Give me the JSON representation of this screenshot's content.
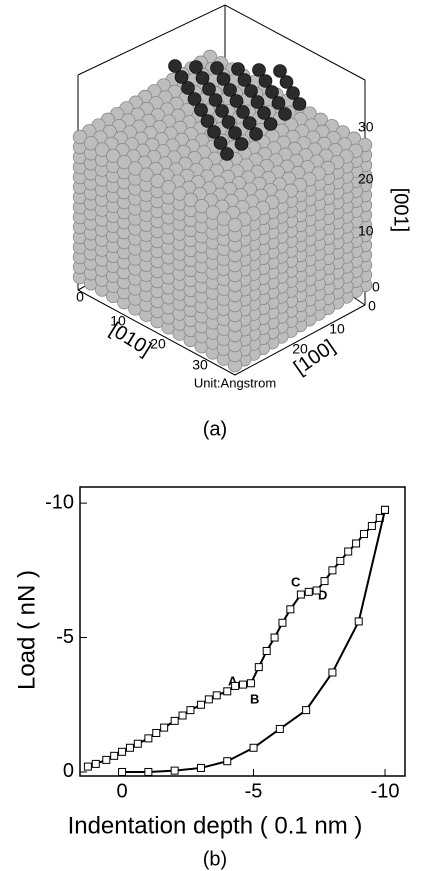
{
  "panel_a": {
    "axis_001": {
      "label": "[001]",
      "ticks": [
        30,
        20,
        10,
        0
      ]
    },
    "axis_010": {
      "label": "[010]",
      "ticks": [
        0,
        10,
        20,
        30
      ]
    },
    "axis_100": {
      "label": "[100]",
      "ticks": [
        0,
        10,
        20
      ]
    },
    "unit": "Unit:Angstrom",
    "caption": "(a)"
  },
  "chart_data": {
    "type": "line",
    "xlabel": "Indentation depth ( 0.1 nm )",
    "ylabel": "Load ( nN )",
    "caption": "(b)",
    "annotations": [
      "A",
      "B",
      "C",
      "D"
    ],
    "xlim": [
      1.6,
      -10.76
    ],
    "ylim": [
      0.15,
      -10.6
    ],
    "xticks": [
      0,
      -5,
      -10
    ],
    "yticks": [
      0,
      -5,
      -10
    ],
    "series": [
      {
        "color": "#000000",
        "x": [
          1.3,
          1.0,
          0.6,
          0.3,
          0,
          -0.3,
          -0.6,
          -1.0,
          -1.3,
          -1.6,
          -2.0,
          -2.3,
          -2.6,
          -3.0,
          -3.3,
          -3.6,
          -4.0,
          -4.3,
          -4.6,
          -4.9,
          -5.2,
          -5.5,
          -5.8,
          -6.1,
          -6.4,
          -6.8,
          -7.1,
          -7.4,
          -7.7,
          -8.0,
          -8.3,
          -8.6,
          -8.9,
          -9.2,
          -9.5,
          -9.8,
          -10.0
        ],
        "values": [
          -0.2,
          -0.3,
          -0.45,
          -0.6,
          -0.75,
          -0.9,
          -1.05,
          -1.25,
          -1.45,
          -1.65,
          -1.9,
          -2.1,
          -2.3,
          -2.5,
          -2.7,
          -2.85,
          -3.0,
          -3.2,
          -3.25,
          -3.3,
          -3.9,
          -4.5,
          -5.0,
          -5.55,
          -6.05,
          -6.6,
          -6.7,
          -6.75,
          -7.1,
          -7.5,
          -7.85,
          -8.2,
          -8.5,
          -8.85,
          -9.15,
          -9.45,
          -9.75
        ]
      },
      {
        "color": "#000000",
        "x": [
          0,
          -1.0,
          -2.0,
          -3.0,
          -4.0,
          -5.0,
          -6.0,
          -7.0,
          -8.0,
          -9.0,
          -10.0
        ],
        "values": [
          0,
          0,
          -0.05,
          -0.15,
          -0.4,
          -0.9,
          -1.6,
          -2.3,
          -3.7,
          -5.6,
          -9.75
        ]
      }
    ]
  }
}
